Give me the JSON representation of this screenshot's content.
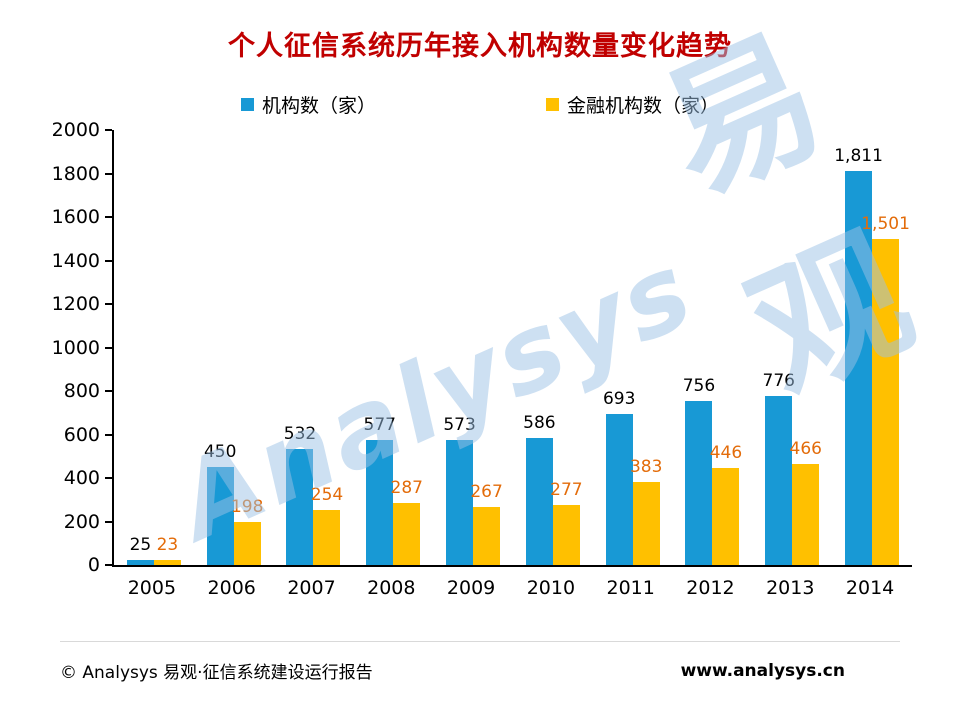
{
  "title": "个人征信系统历年接入机构数量变化趋势",
  "legend": [
    {
      "label": "机构数（家）",
      "color": "#1899D5"
    },
    {
      "label": "金融机构数（家）",
      "color": "#FFC000"
    }
  ],
  "watermark": {
    "primary": "Analysys",
    "secondary": "易观"
  },
  "colors": {
    "title": "#C00000",
    "series_blue": "#1899D5",
    "series_orange": "#FFC000",
    "orange_label": "#E36C0A",
    "watermark": "#9BC2E6"
  },
  "chart_data": {
    "type": "bar",
    "title": "个人征信系统历年接入机构数量变化趋势",
    "categories": [
      "2005",
      "2006",
      "2007",
      "2008",
      "2009",
      "2010",
      "2011",
      "2012",
      "2013",
      "2014"
    ],
    "series": [
      {
        "name": "机构数（家）",
        "color": "#1899D5",
        "label_color": "#000000",
        "values": [
          25,
          450,
          532,
          577,
          573,
          586,
          693,
          756,
          776,
          1811
        ]
      },
      {
        "name": "金融机构数（家）",
        "color": "#FFC000",
        "label_color": "#E36C0A",
        "values": [
          23,
          198,
          254,
          287,
          267,
          277,
          383,
          446,
          466,
          1501
        ]
      }
    ],
    "xlabel": "",
    "ylabel": "",
    "ylim": [
      0,
      2000
    ],
    "ytick_step": 200,
    "grid": false,
    "legend_position": "top",
    "bar_labels": true
  },
  "footer": {
    "left": "© Analysys 易观·征信系统建设运行报告",
    "right": "www.analysys.cn"
  }
}
